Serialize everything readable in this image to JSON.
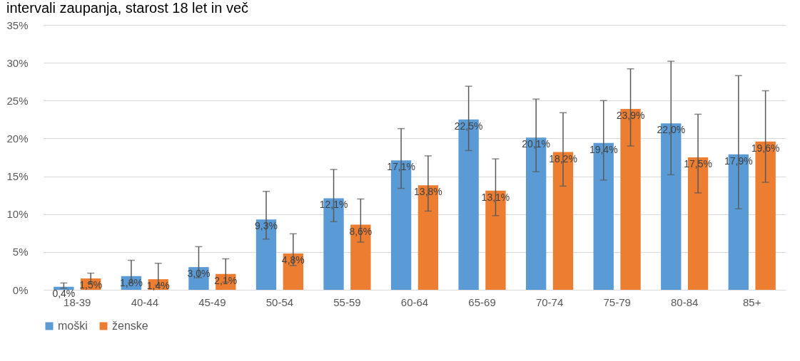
{
  "chart_data": {
    "type": "bar",
    "title": "intervali zaupanja, starost 18 let in več",
    "categories": [
      "18-39",
      "40-44",
      "45-49",
      "50-54",
      "55-59",
      "60-64",
      "65-69",
      "70-74",
      "75-79",
      "80-84",
      "85+"
    ],
    "series": [
      {
        "name": "moški",
        "color": "#5b9bd5",
        "values": [
          0.4,
          1.8,
          3.0,
          9.3,
          12.1,
          17.1,
          22.5,
          20.1,
          19.4,
          22.0,
          17.9
        ],
        "value_labels": [
          "0,4%",
          "1,8%",
          "3,0%",
          "9,3%",
          "12,1%",
          "17,1%",
          "22,5%",
          "20,1%",
          "19,4%",
          "22,0%",
          "17,9%"
        ],
        "errors": [
          [
            0.2,
            0.9
          ],
          [
            0.9,
            3.9
          ],
          [
            1.6,
            5.7
          ],
          [
            6.7,
            13.0
          ],
          [
            9.0,
            15.9
          ],
          [
            13.4,
            21.3
          ],
          [
            18.4,
            26.9
          ],
          [
            15.6,
            25.2
          ],
          [
            14.5,
            25.0
          ],
          [
            15.2,
            30.2
          ],
          [
            10.7,
            28.3
          ]
        ]
      },
      {
        "name": "ženske",
        "color": "#ed7d31",
        "values": [
          1.5,
          1.4,
          2.1,
          4.8,
          8.6,
          13.8,
          13.1,
          18.2,
          23.9,
          17.5,
          19.6
        ],
        "value_labels": [
          "1,5%",
          "1,4%",
          "2,1%",
          "4,8%",
          "8,6%",
          "13,8%",
          "13,1%",
          "18,2%",
          "23,9%",
          "17,5%",
          "19,6%"
        ],
        "errors": [
          [
            0.9,
            2.2
          ],
          [
            0.6,
            3.5
          ],
          [
            1.0,
            4.1
          ],
          [
            3.2,
            7.4
          ],
          [
            6.3,
            12.0
          ],
          [
            10.4,
            17.7
          ],
          [
            9.8,
            17.3
          ],
          [
            13.7,
            23.4
          ],
          [
            19.0,
            29.2
          ],
          [
            12.8,
            23.2
          ],
          [
            14.2,
            26.3
          ]
        ]
      }
    ],
    "ylim": [
      0,
      35
    ],
    "yticks": [
      {
        "value": 0,
        "label": "0%"
      },
      {
        "value": 5,
        "label": "5%"
      },
      {
        "value": 10,
        "label": "10%"
      },
      {
        "value": 15,
        "label": "15%"
      },
      {
        "value": 20,
        "label": "20%"
      },
      {
        "value": 25,
        "label": "25%"
      },
      {
        "value": 30,
        "label": "30%"
      },
      {
        "value": 35,
        "label": "35%"
      }
    ],
    "grid": "y",
    "legend": "bottom"
  }
}
